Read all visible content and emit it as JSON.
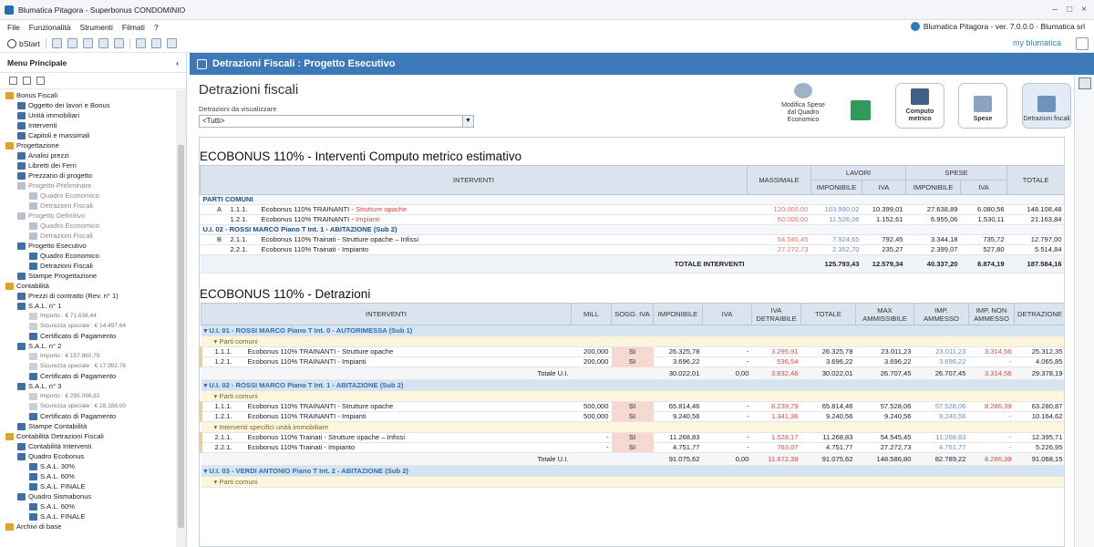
{
  "window": {
    "title": "Blumatica Pitagora - Superbonus CONDOMINIO",
    "controls": [
      "–",
      "□",
      "×"
    ]
  },
  "menu": {
    "items": [
      "File",
      "Funzionalità",
      "Strumenti",
      "Filmati",
      "?"
    ],
    "about": "Blumatica Pitagora - ver. 7.0.0.0 - Blumatica srl"
  },
  "toolbar": {
    "start_label": "bStart",
    "brand_prefix": "my",
    "brand_name": "blumatica"
  },
  "sidebar": {
    "title": "Menu Principale",
    "collapse": "‹",
    "items": [
      {
        "label": "Bonus Fiscali",
        "level": 1,
        "kind": "folder"
      },
      {
        "label": "Oggetto dei lavori e Bonus",
        "level": 2
      },
      {
        "label": "Unità immobiliari",
        "level": 2
      },
      {
        "label": "Interventi",
        "level": 2
      },
      {
        "label": "Capitoli e massimali",
        "level": 2
      },
      {
        "label": "Progettazione",
        "level": 1,
        "kind": "folder"
      },
      {
        "label": "Analisi prezzi",
        "level": 2
      },
      {
        "label": "Libretti dei Ferri",
        "level": 2
      },
      {
        "label": "Prezzario di progetto",
        "level": 2
      },
      {
        "label": "Progetto Preliminare",
        "level": 2,
        "disabled": true
      },
      {
        "label": "Quadro Economico",
        "level": 3,
        "disabled": true
      },
      {
        "label": "Detrazioni Fiscali",
        "level": 3,
        "disabled": true
      },
      {
        "label": "Progetto Definitivo",
        "level": 2,
        "disabled": true
      },
      {
        "label": "Quadro Economico",
        "level": 3,
        "disabled": true
      },
      {
        "label": "Detrazioni Fiscali",
        "level": 3,
        "disabled": true
      },
      {
        "label": "Progetto Esecutivo",
        "level": 2
      },
      {
        "label": "Quadro Economico",
        "level": 3
      },
      {
        "label": "Detrazioni Fiscali",
        "level": 3
      },
      {
        "label": "Stampe Progettazione",
        "level": 2
      },
      {
        "label": "Contabilità",
        "level": 1,
        "kind": "folder"
      },
      {
        "label": "Prezzi di contratto (Rev. n° 1)",
        "level": 2
      },
      {
        "label": "S.A.L. n° 1",
        "level": 2
      },
      {
        "label": "Importo : € 71.638,44",
        "level": 3,
        "small": true
      },
      {
        "label": "Sicurezza speciale : € 14.497,64",
        "level": 3,
        "small": true
      },
      {
        "label": "Certificato di Pagamento",
        "level": 3
      },
      {
        "label": "S.A.L. n° 2",
        "level": 2
      },
      {
        "label": "Importo : € 157.960,79",
        "level": 3,
        "small": true
      },
      {
        "label": "Sicurezza speciale : € 17.992,76",
        "level": 3,
        "small": true
      },
      {
        "label": "Certificato di Pagamento",
        "level": 3
      },
      {
        "label": "S.A.L. n° 3",
        "level": 2
      },
      {
        "label": "Importo : € 295.096,82",
        "level": 3,
        "small": true
      },
      {
        "label": "Sicurezza speciale : € 28.188,00",
        "level": 3,
        "small": true
      },
      {
        "label": "Certificato di Pagamento",
        "level": 3
      },
      {
        "label": "Stampe Contabilità",
        "level": 2
      },
      {
        "label": "Contabilità Detrazioni Fiscali",
        "level": 1,
        "kind": "folder"
      },
      {
        "label": "Contabilità Interventi",
        "level": 2
      },
      {
        "label": "Quadro Ecobonus",
        "level": 2
      },
      {
        "label": "S.A.L. 30%",
        "level": 3
      },
      {
        "label": "S.A.L. 60%",
        "level": 3
      },
      {
        "label": "S.A.L. FINALE",
        "level": 3
      },
      {
        "label": "Quadro Sismabonus",
        "level": 2
      },
      {
        "label": "S.A.L. 60%",
        "level": 3
      },
      {
        "label": "S.A.L. FINALE",
        "level": 3
      },
      {
        "label": "Archivi di base",
        "level": 1,
        "kind": "folder"
      }
    ]
  },
  "header": {
    "title": "Detrazioni Fiscali : Progetto Esecutivo"
  },
  "page": {
    "title": "Detrazioni fiscali",
    "filter_label": "Detrazioni da visualizzare",
    "filter_value": "<Tutti>"
  },
  "actions": {
    "modifica": "Modifica Spese dal Quadro Economico",
    "excel": "",
    "computo": "Computo metrico",
    "spese": "Spese",
    "detrazioni": "Detrazioni fiscali"
  },
  "colors": {
    "accent": "#3b79b8",
    "red": "#e0473c",
    "header_bg": "#dbe4ee"
  },
  "table1": {
    "title": "ECOBONUS 110% - Interventi Computo metrico estimativo",
    "headers": {
      "interventi": "INTERVENTI",
      "massimale": "MASSIMALE",
      "lavori": "LAVORI",
      "spese": "SPESE",
      "totale": "TOTALE",
      "imponibile": "IMPONIBILE",
      "iva": "IVA"
    },
    "groups": [
      {
        "label": "PARTI COMUNI",
        "rows": [
          {
            "letter": "A",
            "code": "1.1.1.",
            "desc": "Ecobonus 110% TRAINANTI - ",
            "desc_red": "Strutture opache",
            "massimale": "120.000,00",
            "l_imp": "103.990,02",
            "l_iva": "10.399,01",
            "s_imp": "27.638,89",
            "s_iva": "6.080,56",
            "totale": "148.108,48"
          },
          {
            "letter": "",
            "code": "1.2.1.",
            "desc": "Ecobonus 110% TRAINANTI - ",
            "desc_red": "Impianti",
            "massimale": "60.000,00",
            "l_imp": "11.526,06",
            "l_iva": "1.152,61",
            "s_imp": "6.955,06",
            "s_iva": "1.530,11",
            "totale": "21.163,84"
          }
        ]
      },
      {
        "label": "U.I. 02 - ROSSI MARCO Piano T Int. 1 - ABITAZIONE (Sub 2)",
        "rows": [
          {
            "letter": "B",
            "code": "2.1.1.",
            "desc": "Ecobonus 110% Trainati - Strutture opache – Infissi",
            "desc_red": "",
            "massimale": "54.545,45",
            "l_imp": "7.924,65",
            "l_iva": "792,45",
            "s_imp": "3.344,18",
            "s_iva": "735,72",
            "totale": "12.797,00"
          },
          {
            "letter": "",
            "code": "2.2.1.",
            "desc": "Ecobonus 110% Trainati - Impianto",
            "desc_red": "",
            "massimale": "27.272,73",
            "l_imp": "2.352,70",
            "l_iva": "235,27",
            "s_imp": "2.399,07",
            "s_iva": "527,80",
            "totale": "5.514,84"
          }
        ]
      }
    ],
    "total": {
      "label": "TOTALE INTERVENTI",
      "l_imp": "125.793,43",
      "l_iva": "12.579,34",
      "s_imp": "40.337,20",
      "s_iva": "8.874,19",
      "totale": "187.584,16"
    }
  },
  "table2": {
    "title": "ECOBONUS 110% - Detrazioni",
    "headers": [
      "INTERVENTI",
      "MILL",
      "SOGG. IVA",
      "IMPONIBILE",
      "IVA",
      "IVA DETRAIBILE",
      "TOTALE",
      "MAX AMMISSIBILE",
      "IMP. AMMESSO",
      "IMP. NON AMMESSO",
      "DETRAZIONE"
    ],
    "units": [
      {
        "label": "U.I. 01 - ROSSI MARCO Piano T Int. 0 - AUTORIMESSA (Sub 1)",
        "parts": [
          {
            "label": "Parti comuni",
            "rows": [
              {
                "code": "1.1.1.",
                "desc": "Ecobonus 110% TRAINANTI - Strutture opache",
                "mill": "200,000",
                "sogg": "SI",
                "imp": "26.325,78",
                "iva": "-",
                "ivad": "3.295,91",
                "tot": "26.325,78",
                "max": "23.011,23",
                "amm": "23.011,23",
                "namm": "3.314,56",
                "detr": "25.312,35"
              },
              {
                "code": "1.2.1.",
                "desc": "Ecobonus 110% TRAINANTI - Impianti",
                "mill": "200,000",
                "sogg": "SI",
                "imp": "3.696,22",
                "iva": "-",
                "ivad": "536,54",
                "tot": "3.696,22",
                "max": "3.696,22",
                "amm": "3.696,22",
                "namm": "-",
                "detr": "4.065,85"
              }
            ]
          }
        ],
        "total": {
          "label": "Totale U.I.",
          "imp": "30.022,01",
          "iva": "0,00",
          "ivad": "3.832,46",
          "tot": "30.022,01",
          "max": "26.707,45",
          "amm": "26.707,45",
          "namm": "3.314,56",
          "detr": "29.378,19"
        }
      },
      {
        "label": "U.I. 02 - ROSSI MARCO Piano T Int. 1 - ABITAZIONE (Sub 2)",
        "parts": [
          {
            "label": "Parti comuni",
            "rows": [
              {
                "code": "1.1.1.",
                "desc": "Ecobonus 110% TRAINANTI - Strutture opache",
                "mill": "500,000",
                "sogg": "SI",
                "imp": "65.814,46",
                "iva": "-",
                "ivad": "8.239,79",
                "tot": "65.814,46",
                "max": "57.528,06",
                "amm": "57.528,06",
                "namm": "8.286,39",
                "detr": "63.280,87"
              },
              {
                "code": "1.2.1.",
                "desc": "Ecobonus 110% TRAINANTI - Impianti",
                "mill": "500,000",
                "sogg": "SI",
                "imp": "9.240,56",
                "iva": "-",
                "ivad": "1.341,36",
                "tot": "9.240,56",
                "max": "9.240,56",
                "amm": "9.240,56",
                "namm": "-",
                "detr": "10.164,62"
              }
            ]
          },
          {
            "label": "Interventi specifici unità immobiliare",
            "rows": [
              {
                "code": "2.1.1.",
                "desc": "Ecobonus 110% Trainati - Strutture opache – Infissi",
                "mill": "-",
                "sogg": "SI",
                "imp": "11.268,83",
                "iva": "-",
                "ivad": "1.528,17",
                "tot": "11.268,83",
                "max": "54.545,45",
                "amm": "11.268,83",
                "namm": "-",
                "detr": "12.395,71"
              },
              {
                "code": "2.2.1.",
                "desc": "Ecobonus 110% Trainati - Impianto",
                "mill": "-",
                "sogg": "SI",
                "imp": "4.751,77",
                "iva": "-",
                "ivad": "763,07",
                "tot": "4.751,77",
                "max": "27.272,73",
                "amm": "4.751,77",
                "namm": "-",
                "detr": "5.226,95"
              }
            ]
          }
        ],
        "total": {
          "label": "Totale U.I.",
          "imp": "91.075,62",
          "iva": "0,00",
          "ivad": "11.872,39",
          "tot": "91.075,62",
          "max": "148.586,80",
          "amm": "82.789,22",
          "namm": "8.286,39",
          "detr": "91.068,15"
        }
      },
      {
        "label": "U.I. 03 - VERDI ANTONIO Piano T Int. 2 - ABITAZIONE (Sub 2)",
        "parts": [
          {
            "label": "Parti comuni",
            "rows": []
          }
        ]
      }
    ]
  }
}
